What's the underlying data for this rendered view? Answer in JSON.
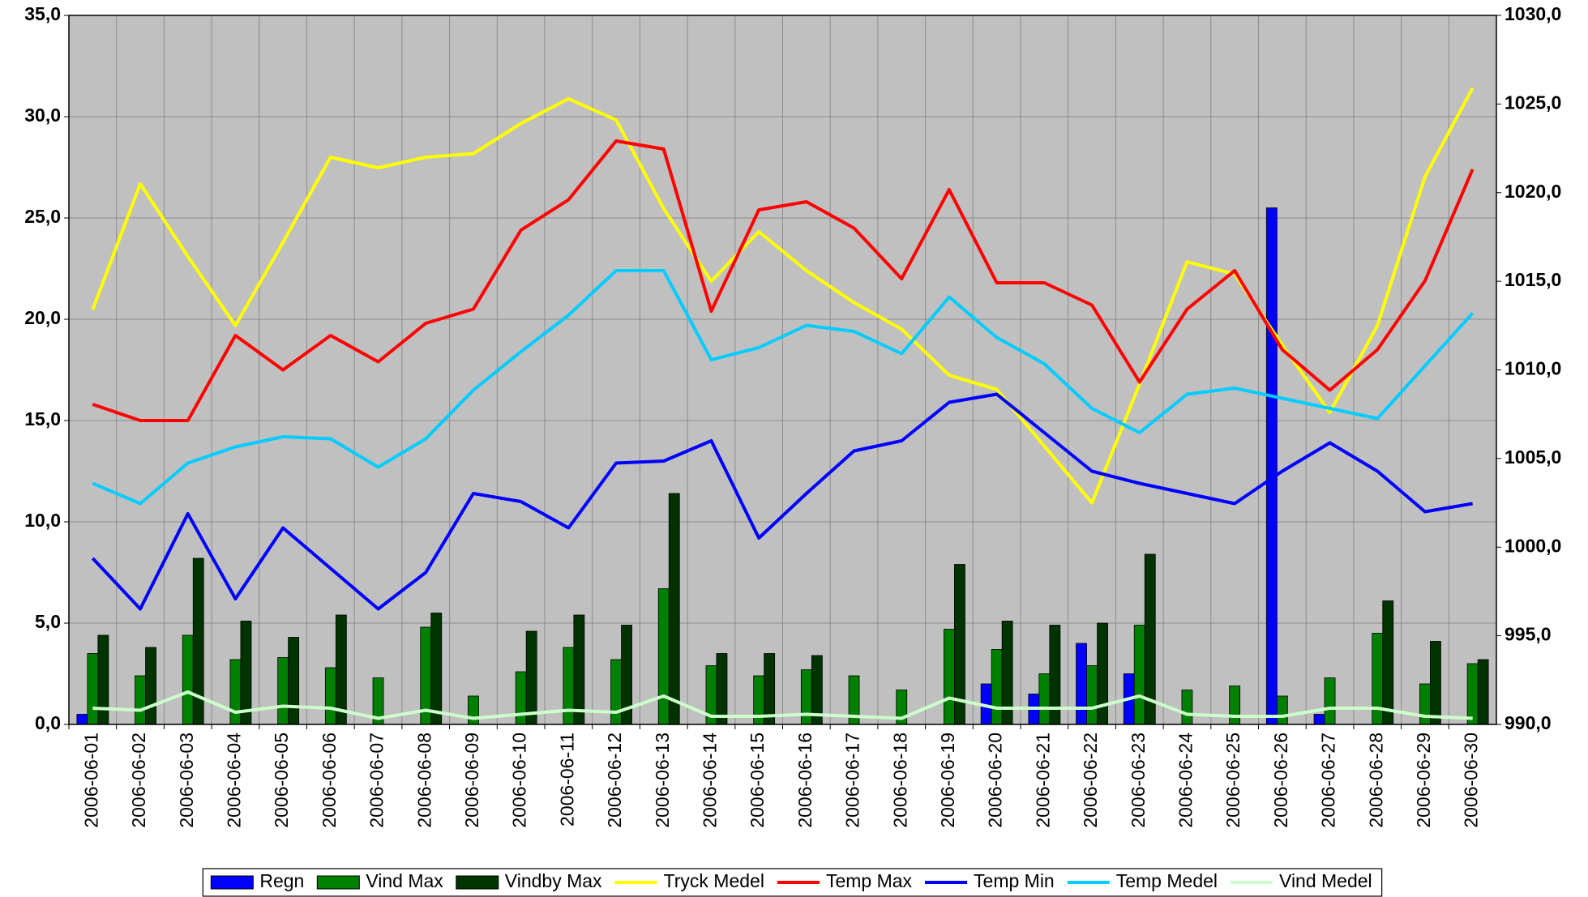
{
  "chart_data": {
    "type": "combo",
    "categories": [
      "2006-06-01",
      "2006-06-02",
      "2006-06-03",
      "2006-06-04",
      "2006-06-05",
      "2006-06-06",
      "2006-06-07",
      "2006-06-08",
      "2006-06-09",
      "2006-06-10",
      "2006-06-11",
      "2006-06-12",
      "2006-06-13",
      "2006-06-14",
      "2006-06-15",
      "2006-06-16",
      "2006-06-17",
      "2006-06-18",
      "2006-06-19",
      "2006-06-20",
      "2006-06-21",
      "2006-06-22",
      "2006-06-23",
      "2006-06-24",
      "2006-06-25",
      "2006-06-26",
      "2006-06-27",
      "2006-06-28",
      "2006-06-29",
      "2006-06-30"
    ],
    "series": [
      {
        "name": "Regn",
        "type": "bar",
        "color": "#0000ff",
        "values": [
          0.5,
          0,
          0,
          0,
          0,
          0,
          0,
          0,
          0,
          0,
          0,
          0,
          0,
          0,
          0,
          0,
          0,
          0,
          0,
          2.0,
          1.5,
          4.0,
          2.5,
          0,
          0,
          25.5,
          0.5,
          0,
          0,
          0
        ]
      },
      {
        "name": "Vind Max",
        "type": "bar",
        "color": "#008000",
        "values": [
          3.5,
          2.4,
          4.4,
          3.2,
          3.3,
          2.8,
          2.3,
          4.8,
          1.4,
          2.6,
          3.8,
          3.2,
          6.7,
          2.9,
          2.4,
          2.7,
          2.4,
          1.7,
          4.7,
          3.7,
          2.5,
          2.9,
          4.9,
          1.7,
          1.9,
          1.4,
          2.3,
          4.5,
          2.0,
          3.0
        ]
      },
      {
        "name": "Vindby Max",
        "type": "bar",
        "color": "#003300",
        "values": [
          4.4,
          3.8,
          8.2,
          5.1,
          4.3,
          5.4,
          0,
          5.5,
          0,
          4.6,
          5.4,
          4.9,
          11.4,
          3.5,
          3.5,
          3.4,
          0,
          0,
          7.9,
          5.1,
          4.9,
          5.0,
          8.4,
          0,
          0,
          0,
          0,
          6.1,
          4.1,
          3.2
        ]
      },
      {
        "name": "Tryck Medel",
        "type": "line",
        "axis": "y2",
        "color": "#ffff00",
        "values": [
          1013.4,
          1020.5,
          1016.4,
          1012.5,
          1017.2,
          1022.0,
          1021.4,
          1022.0,
          1022.2,
          1023.9,
          1025.3,
          1024.1,
          1019.1,
          1015.0,
          1017.8,
          1015.6,
          1013.8,
          1012.3,
          1009.7,
          1008.9,
          1005.7,
          1002.5,
          1009.2,
          1016.1,
          1015.4,
          1011.4,
          1007.6,
          1012.5,
          1020.9,
          1025.9
        ]
      },
      {
        "name": "Temp Max",
        "type": "line",
        "color": "#ff0000",
        "values": [
          15.8,
          15.0,
          15.0,
          19.2,
          17.5,
          19.2,
          17.9,
          19.8,
          20.5,
          24.4,
          25.9,
          28.8,
          28.4,
          20.4,
          25.4,
          25.8,
          24.5,
          22.0,
          26.4,
          21.8,
          21.8,
          20.7,
          16.9,
          20.5,
          22.4,
          18.5,
          16.5,
          18.5,
          21.9,
          27.4
        ]
      },
      {
        "name": "Temp Min",
        "type": "line",
        "color": "#0000ff",
        "values": [
          8.2,
          5.7,
          10.4,
          6.2,
          9.7,
          7.7,
          5.7,
          7.5,
          11.4,
          11.0,
          9.7,
          12.9,
          13.0,
          14.0,
          9.2,
          11.4,
          13.5,
          14.0,
          15.9,
          16.3,
          14.4,
          12.5,
          11.9,
          11.4,
          10.9,
          12.5,
          13.9,
          12.5,
          10.5,
          10.9
        ]
      },
      {
        "name": "Temp Medel",
        "type": "line",
        "color": "#00ccff",
        "values": [
          11.9,
          10.9,
          12.9,
          13.7,
          14.2,
          14.1,
          12.7,
          14.1,
          16.5,
          18.4,
          20.2,
          22.4,
          22.4,
          18.0,
          18.6,
          19.7,
          19.4,
          18.3,
          21.1,
          19.1,
          17.8,
          15.6,
          14.4,
          16.3,
          16.6,
          16.1,
          15.6,
          15.1,
          17.7,
          20.3
        ]
      },
      {
        "name": "Vind Medel",
        "type": "line",
        "color": "#ccffcc",
        "values": [
          0.8,
          0.7,
          1.6,
          0.6,
          0.9,
          0.8,
          0.3,
          0.7,
          0.3,
          0.5,
          0.7,
          0.6,
          1.4,
          0.4,
          0.4,
          0.5,
          0.4,
          0.3,
          1.3,
          0.8,
          0.8,
          0.8,
          1.4,
          0.5,
          0.4,
          0.4,
          0.8,
          0.8,
          0.4,
          0.3
        ]
      }
    ],
    "ylim": [
      0,
      35
    ],
    "yticks": [
      {
        "value": 0,
        "label": "0,0"
      },
      {
        "value": 5,
        "label": "5,0"
      },
      {
        "value": 10,
        "label": "10,0"
      },
      {
        "value": 15,
        "label": "15,0"
      },
      {
        "value": 20,
        "label": "20,0"
      },
      {
        "value": 25,
        "label": "25,0"
      },
      {
        "value": 30,
        "label": "30,0"
      },
      {
        "value": 35,
        "label": "35,0"
      }
    ],
    "y2lim": [
      990,
      1030
    ],
    "y2ticks": [
      {
        "value": 990,
        "label": "990,0"
      },
      {
        "value": 995,
        "label": "995,0"
      },
      {
        "value": 1000,
        "label": "1000,0"
      },
      {
        "value": 1005,
        "label": "1005,0"
      },
      {
        "value": 1010,
        "label": "1010,0"
      },
      {
        "value": 1015,
        "label": "1015,0"
      },
      {
        "value": 1020,
        "label": "1020,0"
      },
      {
        "value": 1025,
        "label": "1025,0"
      },
      {
        "value": 1030,
        "label": "1030,0"
      }
    ],
    "grid": true,
    "legend": "bottom"
  }
}
